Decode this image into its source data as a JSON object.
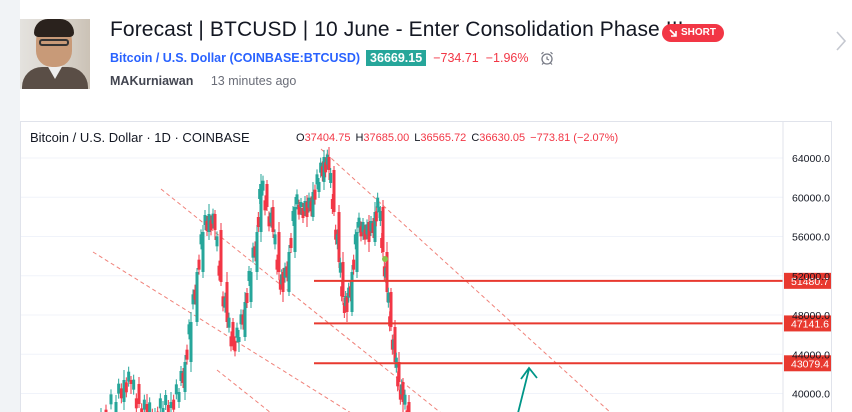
{
  "idea": {
    "title": "Forecast | BTCUSD | 10 June - Enter Consolidation Phase !!!",
    "direction_label": "SHORT",
    "symbol_name": "Bitcoin / U.S. Dollar",
    "symbol_code": "(COINBASE:BTCUSD)",
    "price": "36669.15",
    "change": "−734.71",
    "change_pct": "−1.96%",
    "author": "MAKurniawan",
    "time_ago": "13 minutes ago"
  },
  "colors": {
    "up": "#26a69a",
    "down": "#f23645",
    "accent": "#2962ff",
    "level_line": "#e8392f",
    "channel": "#f0827a"
  },
  "chart": {
    "legend": "Bitcoin / U.S. Dollar · 1D · COINBASE",
    "ohlc": [
      {
        "k": "O",
        "v": "37404.75"
      },
      {
        "k": "H",
        "v": "37685.00"
      },
      {
        "k": "L",
        "v": "36565.72"
      },
      {
        "k": "C",
        "v": "36630.05"
      },
      {
        "k": "",
        "v": "−773.81 (−2.07%)"
      }
    ],
    "price_axis": [
      "64000.0",
      "60000.0",
      "56000.0",
      "52000.0",
      "48000.0",
      "44000.0",
      "40000.0"
    ],
    "levels": [
      {
        "label": "51480.7",
        "price": 51480.7
      },
      {
        "label": "47141.6",
        "price": 47141.6
      },
      {
        "label": "43079.4",
        "price": 43079.4
      }
    ]
  },
  "chart_data": {
    "type": "candlestick",
    "title": "Bitcoin / U.S. Dollar · 1D · COINBASE",
    "ylim": [
      38500,
      66000
    ],
    "y_ticks": [
      64000,
      60000,
      56000,
      52000,
      48000,
      44000,
      40000
    ],
    "horizontal_levels": [
      51480.7,
      47141.6,
      43079.4
    ],
    "last_bar": {
      "open": 37404.75,
      "high": 37685.0,
      "low": 36565.72,
      "close": 36630.05,
      "change": -773.81,
      "change_pct": -2.07
    }
  }
}
